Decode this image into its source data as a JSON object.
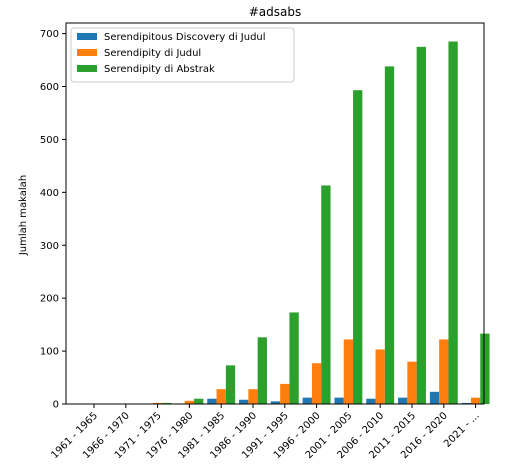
{
  "chart_data": {
    "type": "bar",
    "title": "#adsabs",
    "xlabel": "",
    "ylabel": "Jumlah makalah",
    "ylim": [
      0,
      720
    ],
    "yticks": [
      0,
      100,
      200,
      300,
      400,
      500,
      600,
      700
    ],
    "grid": false,
    "legend_position": "top-left",
    "categories": [
      "1961 - 1965",
      "1966 - 1970",
      "1971 - 1975",
      "1976 - 1980",
      "1981 - 1985",
      "1986 - 1990",
      "1991 - 1995",
      "1996 - 2000",
      "2001 - 2005",
      "2006 - 2010",
      "2011 - 2015",
      "2016 - 2020",
      "2021 - ..."
    ],
    "series": [
      {
        "name": "Serendipitous Discovery di Judul",
        "color": "#1f77b4",
        "values": [
          0,
          0,
          0,
          1,
          10,
          8,
          5,
          12,
          12,
          10,
          12,
          23,
          2
        ]
      },
      {
        "name": "Serendipity di Judul",
        "color": "#ff7f0e",
        "values": [
          0,
          0,
          2,
          6,
          28,
          28,
          38,
          77,
          122,
          103,
          80,
          122,
          12
        ]
      },
      {
        "name": "Serendipity di Abstrak",
        "color": "#2ca02c",
        "values": [
          0,
          0,
          2,
          10,
          73,
          126,
          173,
          413,
          593,
          638,
          675,
          685,
          133
        ]
      }
    ]
  }
}
